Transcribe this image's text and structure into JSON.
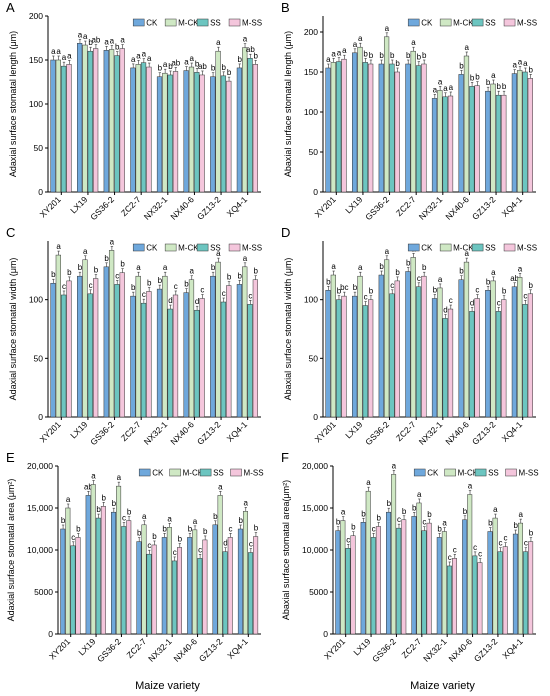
{
  "figure": {
    "xlabel_left": "Maize variety",
    "xlabel_right": "Maize variety"
  },
  "series_colors": {
    "CK": "#6fa8dc",
    "M-CK": "#cfe8c4",
    "SS": "#6cc5c0",
    "M-SS": "#f4c6dc"
  },
  "chart_data": [
    {
      "panel": "A",
      "type": "bar",
      "ylabel": "Adaxial surface stomatal length (μm)",
      "ylim": [
        0,
        200
      ],
      "yticks": [
        0,
        50,
        100,
        150,
        200
      ],
      "ytick_labels": [
        "0",
        "50",
        "100",
        "150",
        "200"
      ],
      "categories": [
        "XY201",
        "LX19",
        "GS36-2",
        "ZC2-7",
        "NX32-1",
        "NX40-6",
        "GZ13-2",
        "XQ4-1"
      ],
      "legend": [
        "CK",
        "M-CK",
        "SS",
        "M-SS"
      ],
      "series": [
        {
          "name": "CK",
          "values": [
            150,
            169,
            161,
            141,
            131,
            138,
            131,
            141
          ],
          "letters": [
            "a",
            "a",
            "a",
            "a",
            "b",
            "a",
            "b",
            "b"
          ]
        },
        {
          "name": "M-CK",
          "values": [
            150,
            167,
            162,
            145,
            135,
            142,
            160,
            164
          ],
          "letters": [
            "a",
            "a",
            "a",
            "a",
            "a",
            "a",
            "a",
            "a"
          ]
        },
        {
          "name": "SS",
          "values": [
            143,
            160,
            155,
            147,
            133,
            136,
            132,
            152
          ],
          "letters": [
            "a",
            "b",
            "b",
            "a",
            "b",
            "b",
            "b",
            "ab"
          ]
        },
        {
          "name": "M-SS",
          "values": [
            145,
            163,
            163,
            142,
            137,
            133,
            126,
            145
          ],
          "letters": [
            "a",
            "ab",
            "a",
            "a",
            "ab",
            "ab",
            "b",
            "b"
          ]
        }
      ]
    },
    {
      "panel": "B",
      "type": "bar",
      "ylabel": "Abaxial surface stomatal length (μm)",
      "ylim": [
        0,
        220
      ],
      "yticks": [
        0,
        50,
        100,
        150,
        200
      ],
      "ytick_labels": [
        "0",
        "50",
        "100",
        "150",
        "200"
      ],
      "categories": [
        "XY201",
        "LX19",
        "GS36-2",
        "ZC2-7",
        "NX32-1",
        "NX40-6",
        "GZ13-2",
        "XQ4-1"
      ],
      "legend": [
        "CK",
        "M-CK",
        "SS",
        "M-SS"
      ],
      "series": [
        {
          "name": "CK",
          "values": [
            155,
            174,
            160,
            160,
            117,
            147,
            126,
            148
          ],
          "letters": [
            "a",
            "a",
            "b",
            "b",
            "a",
            "b",
            "b",
            "a"
          ]
        },
        {
          "name": "M-CK",
          "values": [
            162,
            181,
            194,
            176,
            127,
            170,
            135,
            152
          ],
          "letters": [
            "a",
            "a",
            "a",
            "a",
            "a",
            "a",
            "a",
            "a"
          ]
        },
        {
          "name": "SS",
          "values": [
            163,
            162,
            160,
            158,
            119,
            132,
            121,
            150
          ],
          "letters": [
            "a",
            "b",
            "b",
            "b",
            "a",
            "b",
            "b",
            "a"
          ]
        },
        {
          "name": "M-SS",
          "values": [
            166,
            160,
            150,
            160,
            120,
            133,
            121,
            142
          ],
          "letters": [
            "a",
            "b",
            "b",
            "b",
            "a",
            "b",
            "b",
            "b"
          ]
        }
      ]
    },
    {
      "panel": "C",
      "type": "bar",
      "ylabel": "Adaxial surface stomatal width (μm)",
      "ylim": [
        0,
        150
      ],
      "yticks": [
        0,
        50,
        100
      ],
      "ytick_labels": [
        "0",
        "50",
        "100"
      ],
      "categories": [
        "XY201",
        "LX19",
        "GS36-2",
        "ZC2-7",
        "NX32-1",
        "NX40-6",
        "GZ13-2",
        "XQ4-1"
      ],
      "legend": [
        "CK",
        "M-CK",
        "SS",
        "M-SS"
      ],
      "series": [
        {
          "name": "CK",
          "values": [
            114,
            120,
            128,
            103,
            109,
            106,
            120,
            113
          ],
          "letters": [
            "b",
            "b",
            "b",
            "b",
            "b",
            "b",
            "b",
            "b"
          ]
        },
        {
          "name": "M-CK",
          "values": [
            138,
            134,
            142,
            120,
            120,
            117,
            132,
            128
          ],
          "letters": [
            "a",
            "a",
            "a",
            "a",
            "a",
            "a",
            "a",
            "a"
          ]
        },
        {
          "name": "SS",
          "values": [
            104,
            105,
            113,
            97,
            92,
            91,
            98,
            96
          ],
          "letters": [
            "c",
            "c",
            "c",
            "c",
            "d",
            "d",
            "c",
            "c"
          ]
        },
        {
          "name": "M-SS",
          "values": [
            116,
            118,
            123,
            107,
            104,
            101,
            112,
            117
          ],
          "letters": [
            "b",
            "b",
            "b",
            "b",
            "c",
            "c",
            "b",
            "b"
          ]
        }
      ]
    },
    {
      "panel": "D",
      "type": "bar",
      "ylabel": "Abaxial surface stomatal width (μm)",
      "ylim": [
        0,
        150
      ],
      "yticks": [
        0,
        50,
        100
      ],
      "ytick_labels": [
        "0",
        "50",
        "100"
      ],
      "categories": [
        "XY201",
        "LX19",
        "GS36-2",
        "ZC2-7",
        "NX32-1",
        "NX40-6",
        "GZ13-2",
        "XQ4-1"
      ],
      "legend": [
        "CK",
        "M-CK",
        "SS",
        "M-SS"
      ],
      "series": [
        {
          "name": "CK",
          "values": [
            108,
            103,
            121,
            124,
            101,
            117,
            108,
            111
          ],
          "letters": [
            "b",
            "b",
            "b",
            "b",
            "b",
            "b",
            "b",
            "ab"
          ]
        },
        {
          "name": "M-CK",
          "values": [
            121,
            120,
            134,
            136,
            110,
            132,
            116,
            119
          ],
          "letters": [
            "a",
            "a",
            "a",
            "a",
            "a",
            "a",
            "a",
            "a"
          ]
        },
        {
          "name": "SS",
          "values": [
            100,
            95,
            105,
            111,
            84,
            90,
            90,
            96
          ],
          "letters": [
            "b",
            "c",
            "c",
            "c",
            "d",
            "d",
            "c",
            "c"
          ]
        },
        {
          "name": "M-SS",
          "values": [
            103,
            100,
            116,
            120,
            92,
            101,
            100,
            105
          ],
          "letters": [
            "bc",
            "b",
            "b",
            "b",
            "c",
            "c",
            "b",
            "b"
          ]
        }
      ]
    },
    {
      "panel": "E",
      "type": "bar",
      "ylabel": "Adaxial surface stomatal area (μm²)",
      "ylim": [
        0,
        20000
      ],
      "yticks": [
        0,
        5000,
        10000,
        15000,
        20000
      ],
      "ytick_labels": [
        "0",
        "5000",
        "10,000",
        "15,000",
        "20,000"
      ],
      "categories": [
        "XY201",
        "LX19",
        "GS36-2",
        "ZC2-7",
        "NX32-1",
        "NX40-6",
        "GZ13-2",
        "XQ4-1"
      ],
      "legend": [
        "CK",
        "M-CK",
        "SS",
        "M-SS"
      ],
      "series": [
        {
          "name": "CK",
          "values": [
            12500,
            16500,
            14500,
            11000,
            11500,
            11500,
            13000,
            12500
          ],
          "letters": [
            "b",
            "ab",
            "b",
            "b",
            "b",
            "b",
            "b",
            "b"
          ]
        },
        {
          "name": "M-CK",
          "values": [
            15000,
            17800,
            17600,
            13000,
            12700,
            12400,
            16500,
            14600
          ],
          "letters": [
            "a",
            "a",
            "a",
            "a",
            "a",
            "a",
            "a",
            "a"
          ]
        },
        {
          "name": "SS",
          "values": [
            10500,
            13800,
            12800,
            9500,
            8700,
            9000,
            9800,
            9700
          ],
          "letters": [
            "c",
            "b",
            "c",
            "c",
            "c",
            "c",
            "d",
            "c"
          ]
        },
        {
          "name": "M-SS",
          "values": [
            11500,
            15200,
            13500,
            10600,
            10300,
            11200,
            11500,
            11600
          ],
          "letters": [
            "b",
            "b",
            "b",
            "b",
            "b",
            "b",
            "c",
            "b"
          ]
        }
      ]
    },
    {
      "panel": "F",
      "type": "bar",
      "ylabel": "Abaxial surface stomatal area(μm²)",
      "ylim": [
        0,
        20000
      ],
      "yticks": [
        0,
        5000,
        10000,
        15000,
        20000
      ],
      "ytick_labels": [
        "0",
        "5000",
        "10,000",
        "15,000",
        "20,000"
      ],
      "categories": [
        "XY201",
        "LX19",
        "GS36-2",
        "ZC2-7",
        "NX32-1",
        "NX40-6",
        "GZ13-2",
        "XQ4-1"
      ],
      "legend": [
        "CK",
        "M-CK",
        "SS",
        "M-SS"
      ],
      "series": [
        {
          "name": "CK",
          "values": [
            12300,
            13300,
            14500,
            14000,
            11500,
            13600,
            12200,
            11900
          ],
          "letters": [
            "b",
            "b",
            "b",
            "b",
            "b",
            "b",
            "b",
            "b"
          ]
        },
        {
          "name": "M-CK",
          "values": [
            13500,
            17000,
            19000,
            15600,
            12200,
            16600,
            13800,
            13200
          ],
          "letters": [
            "a",
            "a",
            "a",
            "a",
            "a",
            "a",
            "a",
            "a"
          ]
        },
        {
          "name": "SS",
          "values": [
            10200,
            11500,
            12600,
            12300,
            8100,
            9300,
            9800,
            9800
          ],
          "letters": [
            "c",
            "c",
            "c",
            "c",
            "c",
            "c",
            "c",
            "c"
          ]
        },
        {
          "name": "M-SS",
          "values": [
            11700,
            12800,
            13600,
            13200,
            9000,
            8500,
            10400,
            11000
          ],
          "letters": [
            "b",
            "b",
            "b",
            "b",
            "c",
            "c",
            "c",
            "b"
          ]
        }
      ]
    }
  ]
}
